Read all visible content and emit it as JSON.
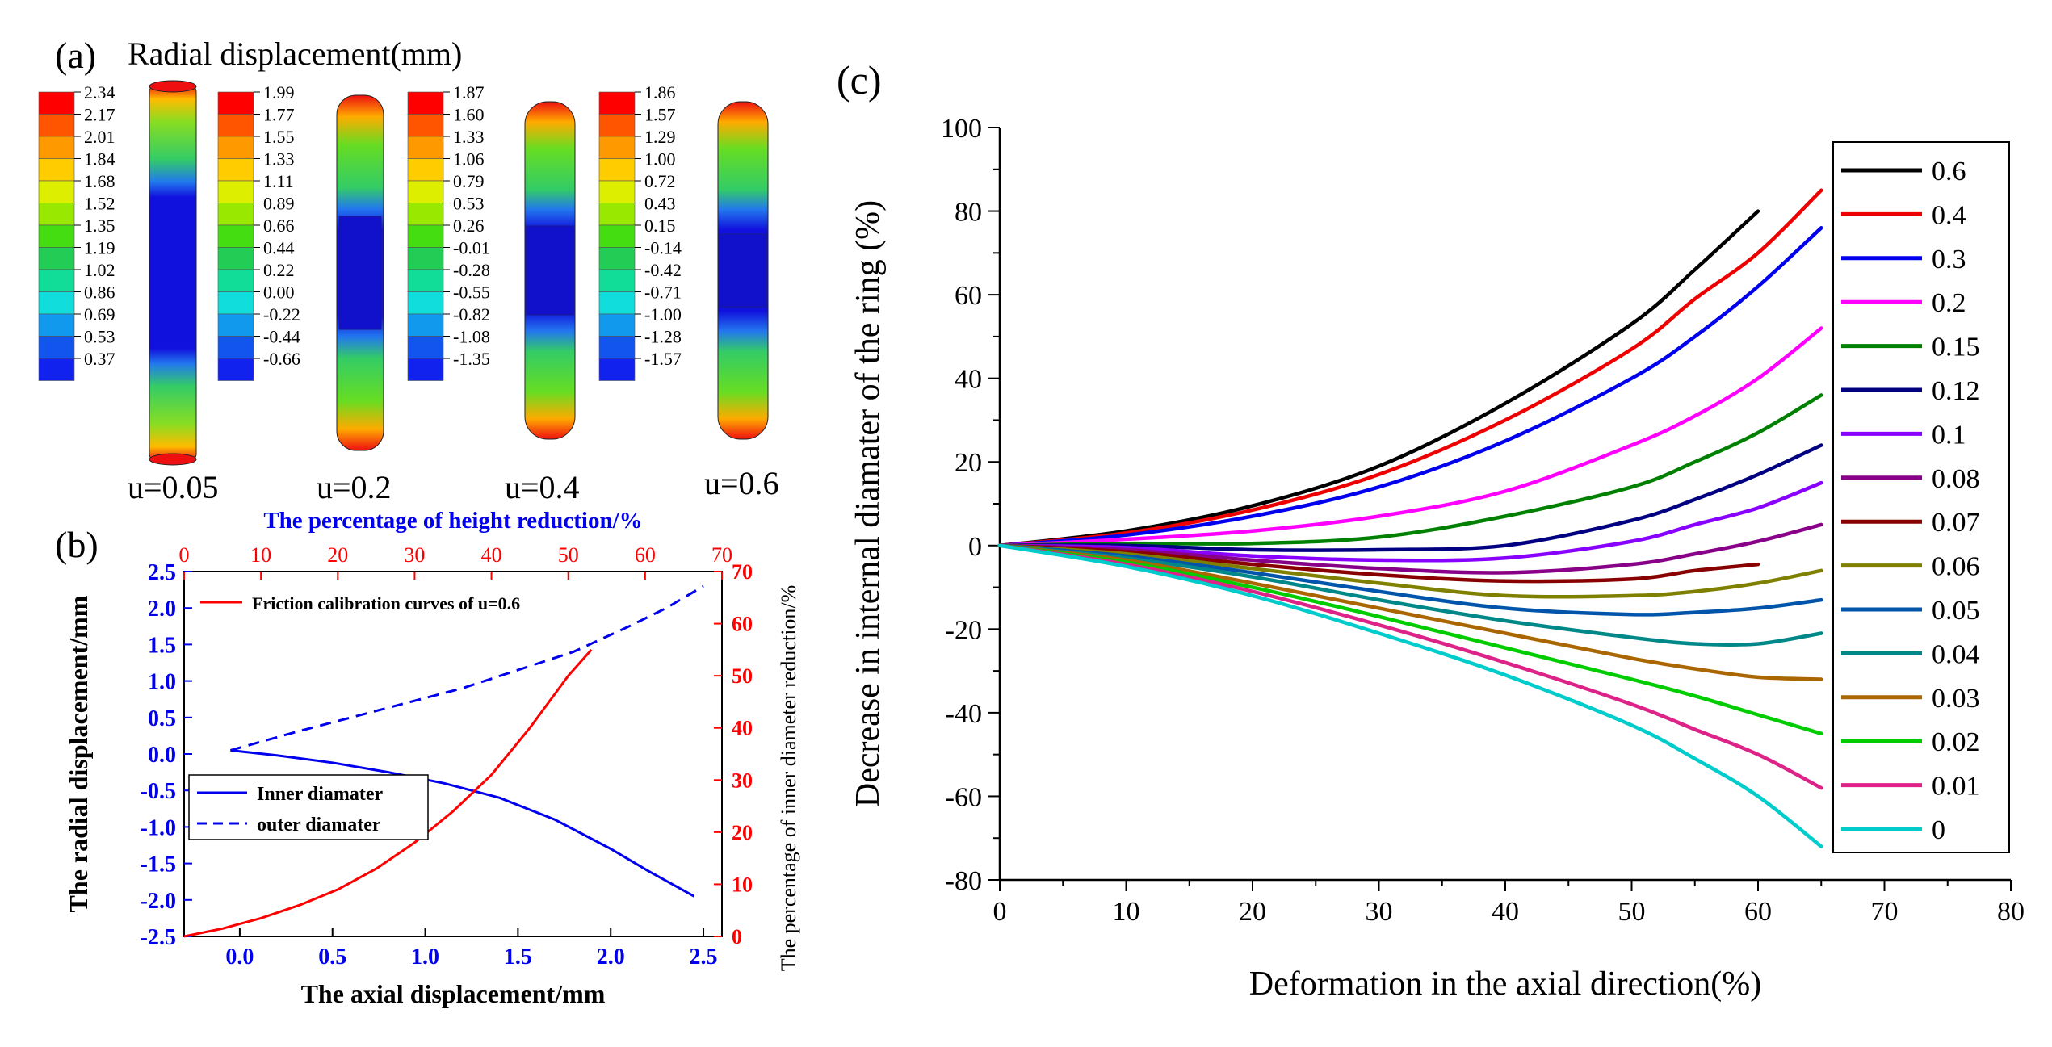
{
  "panel_a": {
    "letter": "(a)",
    "title": "Radial displacement(mm)",
    "colors": [
      "#ff0000",
      "#ff5500",
      "#ff9900",
      "#ffcc00",
      "#ddee00",
      "#99e800",
      "#44dd11",
      "#22cc55",
      "#11dd99",
      "#11dddd",
      "#1199ee",
      "#1155ee",
      "#1122ee"
    ],
    "rings": [
      {
        "label": "u=0.05",
        "legend": [
          "2.34",
          "2.17",
          "2.01",
          "1.84",
          "1.68",
          "1.52",
          "1.35",
          "1.19",
          "1.02",
          "0.86",
          "0.69",
          "0.53",
          "0.37"
        ]
      },
      {
        "label": "u=0.2",
        "legend": [
          "1.99",
          "1.77",
          "1.55",
          "1.33",
          "1.11",
          "0.89",
          "0.66",
          "0.44",
          "0.22",
          "0.00",
          "-0.22",
          "-0.44",
          "-0.66"
        ]
      },
      {
        "label": "u=0.4",
        "legend": [
          "1.87",
          "1.60",
          "1.33",
          "1.06",
          "0.79",
          "0.53",
          "0.26",
          "-0.01",
          "-0.28",
          "-0.55",
          "-0.82",
          "-1.08",
          "-1.35"
        ]
      },
      {
        "label": "u=0.6",
        "legend": [
          "1.86",
          "1.57",
          "1.29",
          "1.00",
          "0.72",
          "0.43",
          "0.15",
          "-0.14",
          "-0.42",
          "-0.71",
          "-1.00",
          "-1.28",
          "-1.57"
        ]
      }
    ]
  },
  "chart_data": [
    {
      "panel": "(b)",
      "type": "line",
      "title": "",
      "xlabel": "The axial displacement/mm",
      "ylabel": "The radial displacement/mm",
      "top_xlabel": "The percentage of height reduction/%",
      "right_ylabel": "The percentage of inner diameter reduction/%",
      "xlim": [
        -0.3,
        2.6
      ],
      "ylim": [
        -2.5,
        2.5
      ],
      "top_xlim": [
        0,
        70
      ],
      "right_ylim": [
        0,
        70
      ],
      "x_ticks": [
        "0.0",
        "0.5",
        "1.0",
        "1.5",
        "2.0",
        "2.5"
      ],
      "y_ticks": [
        "-2.5",
        "-2.0",
        "-1.5",
        "-1.0",
        "-0.5",
        "0.0",
        "0.5",
        "1.0",
        "1.5",
        "2.0",
        "2.5"
      ],
      "top_ticks": [
        "0",
        "10",
        "20",
        "30",
        "40",
        "50",
        "60",
        "70"
      ],
      "right_ticks": [
        "0",
        "10",
        "20",
        "30",
        "40",
        "50",
        "60",
        "70"
      ],
      "legend_top": "Friction calibration curves of u=0.6",
      "legend_bottom": [
        "Inner diamater",
        "outer diamater"
      ],
      "series": [
        {
          "name": "Inner diamater",
          "axes": "bottom-left",
          "color": "#0000ee",
          "style": "solid",
          "x": [
            -0.05,
            0.2,
            0.5,
            0.8,
            1.1,
            1.4,
            1.7,
            2.0,
            2.2,
            2.45
          ],
          "y": [
            0.05,
            -0.02,
            -0.12,
            -0.25,
            -0.4,
            -0.6,
            -0.9,
            -1.3,
            -1.6,
            -1.95
          ]
        },
        {
          "name": "outer diamater",
          "axes": "bottom-left",
          "color": "#0000ee",
          "style": "dashed",
          "x": [
            -0.05,
            0.3,
            0.6,
            0.9,
            1.2,
            1.5,
            1.8,
            2.1,
            2.3,
            2.5
          ],
          "y": [
            0.05,
            0.3,
            0.5,
            0.7,
            0.9,
            1.15,
            1.4,
            1.75,
            2.0,
            2.3
          ]
        },
        {
          "name": "Friction calibration curves of u=0.6",
          "axes": "top-right",
          "color": "#ff0000",
          "style": "solid",
          "x": [
            0,
            5,
            10,
            15,
            20,
            25,
            30,
            35,
            40,
            45,
            50,
            53
          ],
          "y": [
            0,
            1.5,
            3.5,
            6,
            9,
            13,
            18,
            24,
            31,
            40,
            50,
            55
          ]
        }
      ]
    },
    {
      "panel": "(c)",
      "type": "line",
      "title": "",
      "xlabel": "Deformation in the axial direction(%)",
      "ylabel": "Decrease in internal diamater of the ring (%)",
      "xlim": [
        0,
        80
      ],
      "ylim": [
        -80,
        100
      ],
      "x_ticks": [
        "0",
        "10",
        "20",
        "30",
        "40",
        "50",
        "60",
        "70",
        "80"
      ],
      "y_ticks": [
        "-80",
        "-60",
        "-40",
        "-20",
        "0",
        "20",
        "40",
        "60",
        "80",
        "100"
      ],
      "legend_position": "right",
      "x": [
        0,
        10,
        20,
        30,
        40,
        50,
        55,
        60,
        65
      ],
      "series": [
        {
          "name": "0.6",
          "color": "#000000",
          "values": [
            0,
            3.5,
            9.5,
            19,
            34,
            53,
            66,
            80,
            null
          ]
        },
        {
          "name": "0.4",
          "color": "#ee0000",
          "values": [
            0,
            3,
            8.5,
            17,
            30,
            47,
            59,
            70,
            85
          ]
        },
        {
          "name": "0.3",
          "color": "#0000ee",
          "values": [
            0,
            2.5,
            7,
            14,
            25,
            40,
            50,
            62,
            76
          ]
        },
        {
          "name": "0.2",
          "color": "#ff00ff",
          "values": [
            0,
            1.5,
            3.5,
            7,
            13,
            24,
            31,
            40,
            52
          ]
        },
        {
          "name": "0.15",
          "color": "#008000",
          "values": [
            0,
            0.5,
            0.5,
            2,
            7,
            14,
            20,
            27,
            36
          ]
        },
        {
          "name": "0.12",
          "color": "#000080",
          "values": [
            0,
            0,
            -1,
            -1,
            0,
            6,
            11,
            17,
            24
          ]
        },
        {
          "name": "0.1",
          "color": "#8800ff",
          "values": [
            0,
            -0.5,
            -2.5,
            -3.5,
            -3,
            1,
            5,
            9,
            15
          ]
        },
        {
          "name": "0.08",
          "color": "#880088",
          "values": [
            0,
            -1,
            -3.5,
            -5.5,
            -6.5,
            -4.5,
            -2,
            1,
            5
          ]
        },
        {
          "name": "0.07",
          "color": "#880000",
          "values": [
            0,
            -1.5,
            -4.5,
            -7,
            -8.5,
            -8,
            -6,
            -4.5,
            null
          ]
        },
        {
          "name": "0.06",
          "color": "#808000",
          "values": [
            0,
            -2,
            -5.5,
            -9,
            -12,
            -12,
            -11,
            -9,
            -6
          ]
        },
        {
          "name": "0.05",
          "color": "#0055aa",
          "values": [
            0,
            -2.5,
            -6.5,
            -11,
            -15,
            -16.5,
            -16,
            -15,
            -13
          ]
        },
        {
          "name": "0.04",
          "color": "#008888",
          "values": [
            0,
            -3,
            -7.5,
            -13,
            -18,
            -22,
            -23.5,
            -23.5,
            -21
          ]
        },
        {
          "name": "0.03",
          "color": "#aa6600",
          "values": [
            0,
            -3.5,
            -9,
            -15,
            -21,
            -27,
            -29.5,
            -31.5,
            -32
          ]
        },
        {
          "name": "0.02",
          "color": "#00cc00",
          "values": [
            0,
            -4,
            -10,
            -17,
            -24.5,
            -32,
            -36,
            -40.5,
            -45
          ]
        },
        {
          "name": "0.01",
          "color": "#dd2288",
          "values": [
            0,
            -4.5,
            -11,
            -19,
            -28,
            -38,
            -44,
            -50,
            -58
          ]
        },
        {
          "name": "0",
          "color": "#00cccc",
          "values": [
            0,
            -5,
            -12,
            -21,
            -31,
            -43,
            -51,
            -60,
            -72
          ]
        }
      ]
    }
  ]
}
